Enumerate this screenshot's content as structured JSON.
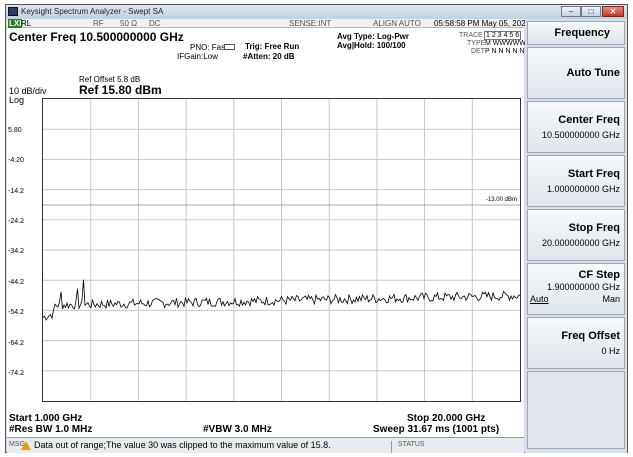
{
  "window": {
    "title": "Keysight Spectrum Analyzer - Swept SA",
    "min": "–",
    "max": "□",
    "close": "✕"
  },
  "header": {
    "rl": "RL",
    "rf": "RF",
    "ohm": "50 Ω",
    "dc": "DC",
    "sense": "SENSE:INT",
    "align": "ALIGN AUTO",
    "datetime": "05:58:58 PM May 05, 2023",
    "center_freq": "Center Freq 10.500000000 GHz",
    "pno": "PNO: Fast",
    "ifgain": "IFGain:Low",
    "trig": "Trig: Free Run",
    "atten": "#Atten: 20 dB",
    "avg_type": "Avg Type: Log-Pwr",
    "avg_hold": "Avg|Hold: 100/100",
    "trace_lbl": "TRACE",
    "trace_vals": "1 2 3 4 5 6",
    "type_lbl": "TYPE",
    "type_vals": "M WWWWW",
    "det_lbl": "DET",
    "det_vals": "P N N N N N",
    "ref_offset": "Ref Offset 5.8 dB",
    "scale": "10 dB/div",
    "ref": "Ref 15.80 dBm",
    "log": "Log"
  },
  "y_ticks": [
    "5.80",
    "-4.20",
    "-14.2",
    "-24.2",
    "-34.2",
    "-44.2",
    "-54.2",
    "-64.2",
    "-74.2"
  ],
  "limit_label": "-13.00 dBm",
  "footer": {
    "start": "Start 1.000 GHz",
    "stop": "Stop 20.000 GHz",
    "rbw": "#Res BW 1.0 MHz",
    "vbw": "#VBW 3.0 MHz",
    "sweep": "Sweep  31.67 ms (1001 pts)"
  },
  "status": {
    "msg": "MSG",
    "text": "Data out of range;The value 30 was clipped to the maximum value of 15.8.",
    "status": "STATUS"
  },
  "softkeys": {
    "title": "Frequency",
    "auto_tune": "Auto Tune",
    "center_freq": "Center Freq",
    "center_val": "10.500000000 GHz",
    "start_freq": "Start Freq",
    "start_val": "1.000000000 GHz",
    "stop_freq": "Stop Freq",
    "stop_val": "20.000000000 GHz",
    "cf_step": "CF Step",
    "cf_val": "1.900000000 GHz",
    "auto": "Auto",
    "man": "Man",
    "freq_offset": "Freq Offset",
    "offset_val": "0 Hz"
  },
  "colors": {
    "accent": "#e8a000",
    "trace": "#000000"
  }
}
